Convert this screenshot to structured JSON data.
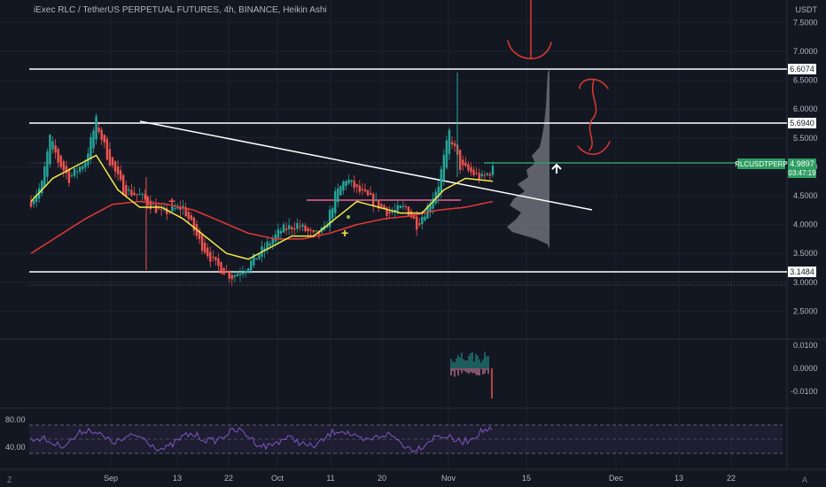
{
  "header": {
    "title": "iExec RLC / TetherUS PERPETUAL FUTURES, 4h, BINANCE, Heikin Ashi",
    "currency": "USDT"
  },
  "price_axis": {
    "ticks": [
      "7.5000",
      "7.0000",
      "6.5000",
      "6.0000",
      "5.5000",
      "5.0000",
      "4.5000",
      "4.0000",
      "3.5000",
      "3.0000",
      "2.5000"
    ],
    "levels": [
      {
        "label": "6.6074",
        "value": 6.6074
      },
      {
        "label": "5.6940",
        "value": 5.694
      },
      {
        "label": "3.1484",
        "value": 3.1484
      }
    ],
    "current": {
      "symbol": "RLCUSDTPERP",
      "price": "4.9897",
      "countdown": "03:47:19",
      "value": 4.9897
    }
  },
  "time_axis": {
    "labels": [
      "Sep",
      "13",
      "22",
      "Oct",
      "11",
      "20",
      "Nov",
      "15",
      "Dec",
      "13",
      "22"
    ]
  },
  "macd_axis": {
    "ticks": [
      "0.0100",
      "0.0000",
      "-0.0100"
    ]
  },
  "rsi_axis": {
    "ticks": [
      "80.00",
      "40.00"
    ]
  },
  "corner": {
    "left": "Z",
    "right": "A"
  },
  "colors": {
    "background": "#131722",
    "up": "#26a69a",
    "down": "#ef5350",
    "ema_short": "#f5e94a",
    "ema_long": "#e53935",
    "level_line": "#ffffff",
    "current_line": "#2e9e63",
    "rsi": "#7e57c2",
    "annotation": "#e0392f"
  },
  "chart_data": {
    "type": "candlestick",
    "timeframe": "4h",
    "ylim": [
      2.3,
      7.8
    ],
    "support_resistance": [
      6.6074,
      5.694,
      3.1484
    ],
    "current_price": 4.9897,
    "series": [
      {
        "name": "price",
        "anchors": [
          [
            0,
            4.4
          ],
          [
            4,
            4.7
          ],
          [
            7,
            5.5
          ],
          [
            10,
            5.1
          ],
          [
            14,
            4.8
          ],
          [
            20,
            5.1
          ],
          [
            24,
            5.8
          ],
          [
            28,
            5.2
          ],
          [
            34,
            4.6
          ],
          [
            40,
            4.5
          ],
          [
            48,
            4.2
          ],
          [
            56,
            4.3
          ],
          [
            62,
            3.7
          ],
          [
            68,
            3.3
          ],
          [
            74,
            3.1
          ],
          [
            80,
            3.3
          ],
          [
            86,
            3.6
          ],
          [
            92,
            3.9
          ],
          [
            98,
            4.0
          ],
          [
            104,
            3.8
          ],
          [
            108,
            3.9
          ],
          [
            112,
            4.5
          ],
          [
            116,
            4.8
          ],
          [
            120,
            4.6
          ],
          [
            126,
            4.4
          ],
          [
            132,
            4.2
          ],
          [
            138,
            4.3
          ],
          [
            142,
            4.0
          ],
          [
            146,
            4.3
          ],
          [
            150,
            4.7
          ],
          [
            154,
            5.6
          ],
          [
            158,
            5.0
          ],
          [
            162,
            4.9
          ],
          [
            166,
            4.8
          ],
          [
            170,
            4.95
          ]
        ]
      },
      {
        "name": "ema_short",
        "anchors": [
          [
            0,
            4.4
          ],
          [
            8,
            4.8
          ],
          [
            16,
            5.0
          ],
          [
            24,
            5.2
          ],
          [
            32,
            4.6
          ],
          [
            40,
            4.3
          ],
          [
            48,
            4.3
          ],
          [
            56,
            4.1
          ],
          [
            64,
            3.8
          ],
          [
            72,
            3.5
          ],
          [
            80,
            3.4
          ],
          [
            88,
            3.6
          ],
          [
            96,
            3.8
          ],
          [
            104,
            3.8
          ],
          [
            112,
            4.1
          ],
          [
            120,
            4.4
          ],
          [
            128,
            4.3
          ],
          [
            136,
            4.2
          ],
          [
            144,
            4.2
          ],
          [
            152,
            4.6
          ],
          [
            160,
            4.8
          ],
          [
            170,
            4.75
          ]
        ]
      },
      {
        "name": "ema_long",
        "anchors": [
          [
            0,
            3.5
          ],
          [
            10,
            3.8
          ],
          [
            20,
            4.1
          ],
          [
            30,
            4.35
          ],
          [
            40,
            4.4
          ],
          [
            50,
            4.35
          ],
          [
            60,
            4.25
          ],
          [
            70,
            4.05
          ],
          [
            80,
            3.85
          ],
          [
            90,
            3.75
          ],
          [
            100,
            3.75
          ],
          [
            110,
            3.85
          ],
          [
            120,
            4.0
          ],
          [
            130,
            4.1
          ],
          [
            140,
            4.15
          ],
          [
            150,
            4.25
          ],
          [
            160,
            4.3
          ],
          [
            170,
            4.4
          ]
        ]
      }
    ]
  }
}
